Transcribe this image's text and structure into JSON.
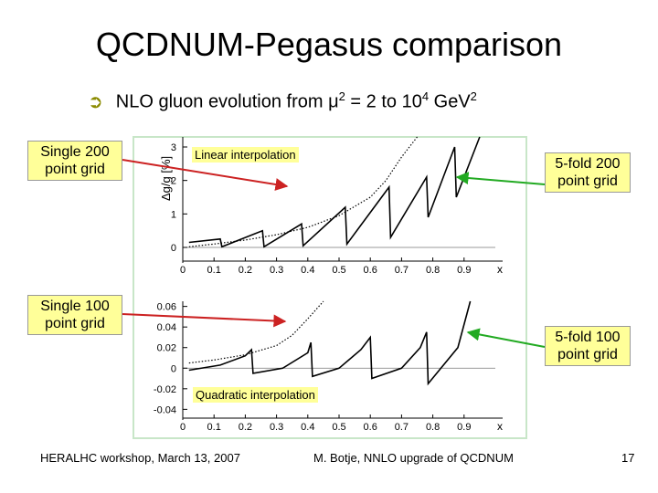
{
  "slide": {
    "title": "QCDNUM-Pegasus comparison",
    "subtitle": {
      "prefix": "NLO gluon evolution from μ",
      "exp1": "2",
      "mid": " = 2 to 10",
      "exp2": "4",
      "unit": " GeV",
      "exp3": "2",
      "bullet_icon": "arrow-bullet-icon"
    },
    "callouts": {
      "single200": "Single 200 point grid",
      "single100": "Single 100 point grid",
      "fivefold200": "5-fold 200 point grid",
      "fivefold100": "5-fold 100 point grid"
    },
    "tags": {
      "linear": "Linear interpolation",
      "quadratic": "Quadratic interpolation"
    },
    "footer": {
      "left": "HERALHC workshop, March 13, 2007",
      "center": "M. Botje, NNLO upgrade of QCDNUM",
      "page": "17"
    },
    "colors": {
      "callout_bg": "#ffff99",
      "arrow_red": "#cc2222",
      "arrow_green": "#22aa22"
    }
  },
  "chart_data": [
    {
      "type": "line",
      "title": "Linear interpolation",
      "ylabel": "Δg/g [%]",
      "xlabel": "x",
      "xlim": [
        0,
        1
      ],
      "ylim": [
        -0.3,
        3.3
      ],
      "x_ticks": [
        "0",
        "0.1",
        "0.2",
        "0.3",
        "0.4",
        "0.5",
        "0.6",
        "0.7",
        "0.8",
        "0.9"
      ],
      "y_ticks": [
        "0",
        "1",
        "2",
        "3"
      ],
      "series": [
        {
          "name": "Single 200 point grid",
          "style": "dotted",
          "x": [
            0.02,
            0.1,
            0.2,
            0.3,
            0.4,
            0.5,
            0.6,
            0.65,
            0.7,
            0.75
          ],
          "y": [
            0.02,
            0.1,
            0.22,
            0.38,
            0.6,
            0.95,
            1.5,
            2.0,
            2.7,
            3.3
          ]
        },
        {
          "name": "5-fold 200 point grid",
          "style": "solid",
          "x": [
            0.02,
            0.12,
            0.125,
            0.255,
            0.26,
            0.38,
            0.385,
            0.52,
            0.525,
            0.66,
            0.665,
            0.78,
            0.785,
            0.87,
            0.875,
            0.95
          ],
          "y": [
            0.15,
            0.25,
            0.02,
            0.5,
            0.02,
            0.7,
            0.05,
            1.2,
            0.1,
            1.8,
            0.3,
            2.1,
            0.9,
            3.0,
            1.5,
            3.3
          ]
        }
      ]
    },
    {
      "type": "line",
      "title": "Quadratic interpolation",
      "ylabel": "",
      "xlabel": "x",
      "xlim": [
        0,
        1
      ],
      "ylim": [
        -0.045,
        0.065
      ],
      "x_ticks": [
        "0",
        "0.1",
        "0.2",
        "0.3",
        "0.4",
        "0.5",
        "0.6",
        "0.7",
        "0.8",
        "0.9"
      ],
      "y_ticks": [
        "-0.04",
        "-0.02",
        "0",
        "0.02",
        "0.04",
        "0.06"
      ],
      "series": [
        {
          "name": "Single 100 point grid",
          "style": "dotted",
          "x": [
            0.02,
            0.1,
            0.2,
            0.3,
            0.35,
            0.4,
            0.45
          ],
          "y": [
            0.005,
            0.008,
            0.013,
            0.022,
            0.032,
            0.048,
            0.065
          ]
        },
        {
          "name": "5-fold 100 point grid",
          "style": "solid",
          "x": [
            0.02,
            0.12,
            0.2,
            0.22,
            0.225,
            0.32,
            0.4,
            0.41,
            0.415,
            0.5,
            0.57,
            0.6,
            0.605,
            0.7,
            0.76,
            0.78,
            0.785,
            0.88,
            0.92
          ],
          "y": [
            -0.002,
            0.003,
            0.012,
            0.018,
            -0.005,
            0.0,
            0.015,
            0.025,
            -0.008,
            0.0,
            0.018,
            0.03,
            -0.01,
            0.0,
            0.02,
            0.035,
            -0.015,
            0.02,
            0.065
          ]
        }
      ]
    }
  ]
}
